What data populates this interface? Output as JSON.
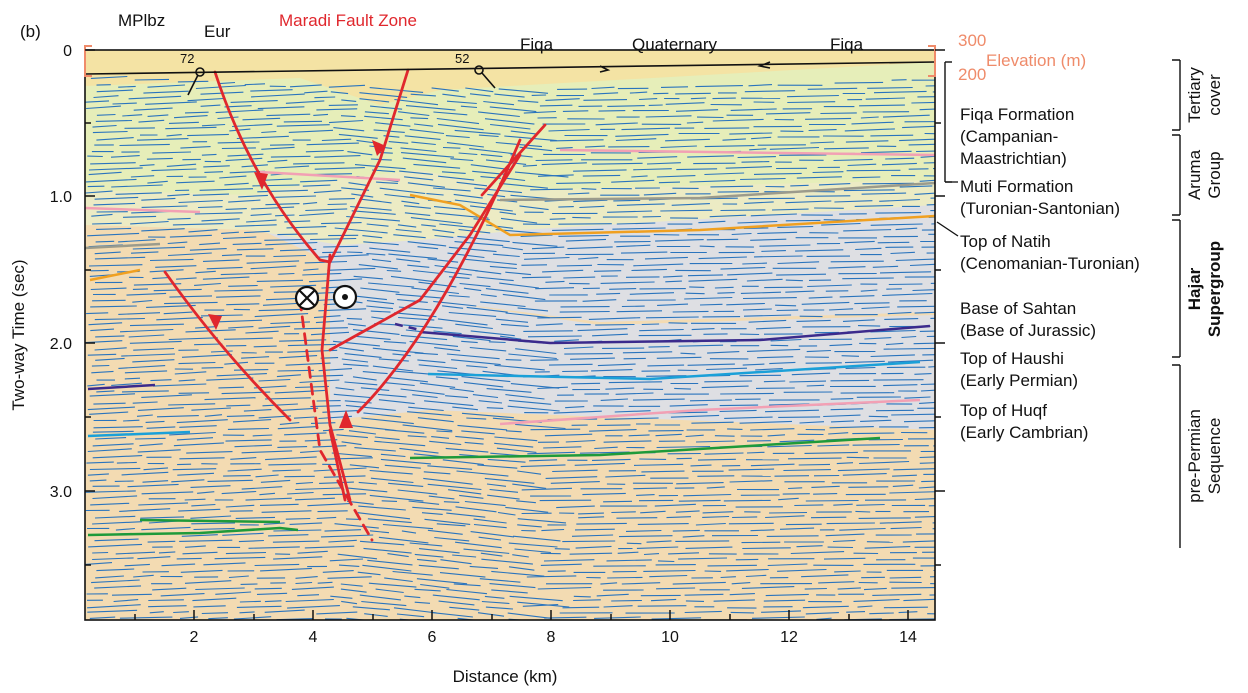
{
  "figure_label": "(b)",
  "fault_zone_title": "Maradi Fault Zone",
  "top_labels": {
    "mplbz": "MPlbz",
    "eur": "Eur",
    "fiqa_left": "Fiqa",
    "quaternary": "Quaternary",
    "fiqa_right": "Fiqa"
  },
  "dip_labels": [
    "72",
    "52"
  ],
  "elevation": {
    "v300": "300",
    "v200": "200",
    "label": "Elevation (m)"
  },
  "x_axis": {
    "label": "Distance (km)",
    "ticks": [
      "2",
      "4",
      "6",
      "8",
      "10",
      "12",
      "14"
    ],
    "range": [
      0.2,
      14.5
    ]
  },
  "y_axis": {
    "label": "Two-way Time (sec)",
    "ticks": [
      "0",
      "1.0",
      "2.0",
      "3.0"
    ],
    "range": [
      0,
      3.7
    ]
  },
  "horizons": [
    {
      "name": "Fiqa Formation",
      "age": "(Campanian-",
      "age2": "Maastrichtian)"
    },
    {
      "name": "Muti Formation",
      "age": "(Turonian-Santonian)"
    },
    {
      "name": "Top of Natih",
      "age": "(Cenomanian-Turonian)"
    },
    {
      "name": "Base of Sahtan",
      "age": "(Base of Jurassic)"
    },
    {
      "name": "Top of Haushi",
      "age": "(Early Permian)"
    },
    {
      "name": "Top of Huqf",
      "age": "(Early Cambrian)"
    }
  ],
  "groups": [
    {
      "line1": "Tertiary",
      "line2": "cover"
    },
    {
      "line1": "Aruma",
      "line2": "Group"
    },
    {
      "line1": "Hajar",
      "line2": "Supergroup"
    },
    {
      "line1": "pre-Permian",
      "line2": "Sequence"
    }
  ],
  "colors": {
    "tertiary": "#f6e1a0",
    "aruma": "#e6eeb9",
    "muti": "#ecebc4",
    "hajar": "#dedfe3",
    "prepermian": "#f3dbb2",
    "reflectors": "#2a74bd",
    "fault": "#e0272d",
    "natih_horizon": "#f0a020",
    "sahtan_horizon": "#3b2a8c",
    "haushi_horizon": "#1aa0d8",
    "huqf_horizon": "#1e9a3a",
    "pink_horizon": "#f2a0b4",
    "gray_horizon": "#9b9b8c",
    "elevation": "#ef8b6a"
  }
}
